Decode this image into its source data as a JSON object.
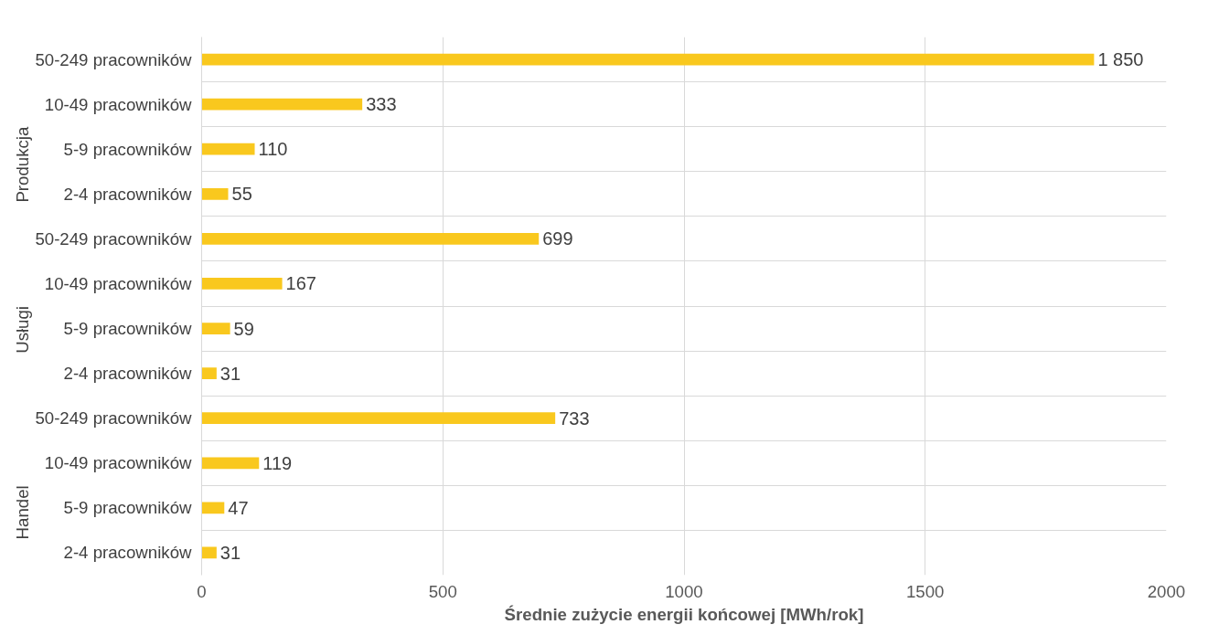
{
  "chart_data": {
    "type": "bar",
    "orientation": "horizontal",
    "xlabel": "Średnie zużycie energii końcowej [MWh/rok]",
    "categories": [
      "50-249 pracowników",
      "10-49 pracowników",
      "5-9 pracowników",
      "2-4 pracowników",
      "50-249 pracowników",
      "10-49 pracowników",
      "5-9 pracowników",
      "2-4 pracowników",
      "50-249 pracowników",
      "10-49 pracowników",
      "5-9 pracowników",
      "2-4 pracowników"
    ],
    "values": [
      1850,
      333,
      110,
      55,
      699,
      167,
      59,
      31,
      733,
      119,
      47,
      31
    ],
    "value_labels": [
      "1 850",
      "333",
      "110",
      "55",
      "699",
      "167",
      "59",
      "31",
      "733",
      "119",
      "47",
      "31"
    ],
    "color": "#f9c81e",
    "annotations": [
      "Produkcja",
      "Usługi",
      "Handel"
    ],
    "xlim": [
      0,
      2000
    ],
    "xticks": [
      0,
      500,
      1000,
      1500,
      2000
    ],
    "grid": true
  }
}
